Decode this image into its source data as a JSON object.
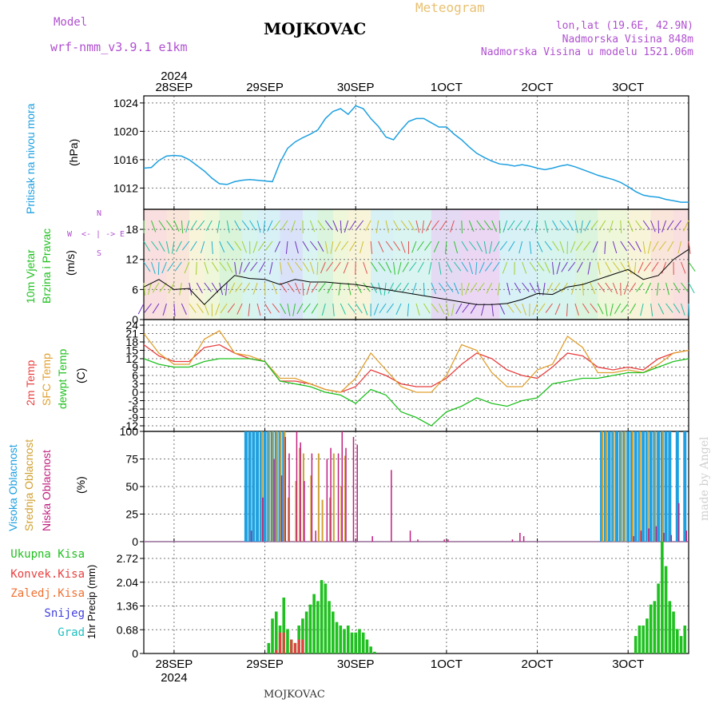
{
  "header": {
    "model_label": "Model",
    "model_name": "wrf-nmm_v3.9.1 e1km",
    "station": "MOJKOVAC",
    "meteogram": "Meteogram",
    "lonlat": "lon,lat (19.6E, 42.9N)",
    "elevation": "Nadmorska Visina 848m",
    "model_elevation": "Nadmorska Visina u modelu 1521.06m",
    "footer_station": "MOJKOVAC",
    "made_by": "made by Angel"
  },
  "time_axis": {
    "year": "2024",
    "labels": [
      "28SEP",
      "29SEP",
      "30SEP",
      "1OCT",
      "2OCT",
      "3OCT"
    ],
    "start_hour": 0,
    "end_hour": 144
  },
  "panels": {
    "pressure": {
      "title": "Pritisak na nivou mora",
      "unit": "(hPa)",
      "color": "#1ea0e0"
    },
    "wind": {
      "title_line1": "10m Vjetar",
      "title_line2": "Brzina i Pravac",
      "unit": "(m/s)",
      "compass_top": "N",
      "compass_left": "W",
      "compass_right": "E",
      "compass_bottom": "S",
      "color": "#20c020",
      "compass_color": "#b050d0"
    },
    "temp": {
      "title_2m": "2m Temp",
      "title_sfc": "SFC Temp",
      "title_dew": "dewpt Temp",
      "unit": "(C)",
      "color_2m": "#e84040",
      "color_sfc": "#e0a030",
      "color_dew": "#20c020"
    },
    "cloud": {
      "title_high": "Visoka Oblacnost",
      "title_mid": "Srednja Oblacnost",
      "title_low": "Niska Oblacnost",
      "unit": "(%)",
      "color_high": "#1ea0e0",
      "color_mid": "#d0a030",
      "color_low": "#c02080"
    },
    "precip": {
      "unit": "1hr Precip (mm)",
      "legend": [
        {
          "label": "Ukupna Kisa",
          "color": "#20c020"
        },
        {
          "label": "Konvek.Kisa",
          "color": "#e84040"
        },
        {
          "label": "Zaledj.Kisa",
          "color": "#f07030"
        },
        {
          "label": "Snijeg",
          "color": "#4040e0"
        },
        {
          "label": "Grad",
          "color": "#20c0c0"
        }
      ]
    }
  },
  "chart_data": [
    {
      "type": "line",
      "panel": "pressure",
      "ylabel": "(hPa)",
      "ylim": [
        1009,
        1025
      ],
      "yticks": [
        "1012",
        "1016",
        "1020",
        "1024"
      ],
      "grid": true,
      "series": [
        {
          "name": "Pritisak na nivou mora",
          "x": [
            0,
            2,
            4,
            6,
            8,
            10,
            12,
            14,
            16,
            18,
            20,
            22,
            24,
            26,
            28,
            30,
            32,
            34,
            36,
            38,
            40,
            42,
            44,
            46,
            48,
            50,
            52,
            54,
            56,
            58,
            60,
            62,
            64,
            66,
            68,
            70,
            72,
            74,
            76,
            78,
            80,
            82,
            84,
            86,
            88,
            90,
            92,
            94,
            96,
            98,
            100,
            102,
            104,
            106,
            108,
            110,
            112,
            114,
            116,
            118,
            120,
            122,
            124,
            126,
            128,
            130,
            132,
            134,
            136,
            138,
            140,
            142,
            144
          ],
          "values": [
            1014.8,
            1014.9,
            1015.9,
            1016.5,
            1016.6,
            1016.5,
            1016.0,
            1015.2,
            1014.4,
            1013.4,
            1012.6,
            1012.5,
            1012.9,
            1013.1,
            1013.2,
            1013.1,
            1013.0,
            1012.9,
            1015.6,
            1017.6,
            1018.5,
            1019.1,
            1019.6,
            1020.2,
            1021.8,
            1022.8,
            1023.2,
            1022.4,
            1023.6,
            1023.2,
            1021.8,
            1020.7,
            1019.2,
            1018.8,
            1020.2,
            1021.4,
            1021.8,
            1021.8,
            1021.2,
            1020.6,
            1020.6,
            1019.6,
            1018.8,
            1017.8,
            1016.9,
            1016.3,
            1015.8,
            1015.4,
            1015.3,
            1015.1,
            1015.3,
            1015.1,
            1014.8,
            1014.6,
            1014.8,
            1015.1,
            1015.3,
            1015.0,
            1014.6,
            1014.2,
            1013.8,
            1013.5,
            1013.2,
            1012.8,
            1012.2,
            1011.5,
            1011.0,
            1010.8,
            1010.7,
            1010.4,
            1010.2,
            1010.0,
            1010.0
          ]
        }
      ]
    },
    {
      "type": "line",
      "panel": "wind",
      "ylabel": "(m/s)",
      "ylim": [
        0,
        22
      ],
      "yticks": [
        "0",
        "6",
        "12",
        "18"
      ],
      "grid": true,
      "series": [
        {
          "name": "wind speed",
          "x": [
            0,
            4,
            8,
            12,
            16,
            20,
            24,
            28,
            32,
            36,
            40,
            44,
            48,
            52,
            56,
            60,
            64,
            68,
            72,
            76,
            80,
            84,
            88,
            92,
            96,
            100,
            104,
            108,
            112,
            116,
            120,
            124,
            128,
            132,
            136,
            140,
            144
          ],
          "values": [
            6.5,
            8.0,
            6.0,
            6.2,
            3.0,
            6.0,
            8.8,
            8.2,
            8.0,
            7.0,
            8.0,
            7.5,
            7.5,
            7.2,
            7.0,
            6.5,
            6.0,
            5.5,
            5.0,
            4.5,
            4.0,
            3.5,
            3.0,
            3.0,
            3.2,
            4.0,
            5.2,
            5.0,
            6.5,
            7.0,
            8.0,
            9.0,
            10.0,
            8.0,
            8.8,
            12.0,
            14.0
          ]
        }
      ]
    },
    {
      "type": "line",
      "panel": "temp",
      "ylabel": "(C)",
      "ylim": [
        -14,
        26
      ],
      "yticks": [
        "-12",
        "-9",
        "-6",
        "-3",
        "0",
        "3",
        "6",
        "9",
        "12",
        "15",
        "18",
        "21",
        "24"
      ],
      "grid": true,
      "series": [
        {
          "name": "2m Temp",
          "x": [
            0,
            4,
            8,
            12,
            16,
            20,
            24,
            28,
            32,
            36,
            40,
            44,
            48,
            52,
            56,
            60,
            64,
            68,
            72,
            76,
            80,
            84,
            88,
            92,
            96,
            100,
            104,
            108,
            112,
            116,
            120,
            124,
            128,
            132,
            136,
            140,
            144
          ],
          "values": [
            17,
            13,
            11,
            11,
            16,
            17,
            14,
            12,
            11,
            4,
            4,
            3,
            1,
            0,
            2,
            8,
            6,
            3,
            2,
            2,
            5,
            10,
            14,
            12,
            8,
            6,
            5,
            9,
            14,
            13,
            9,
            8,
            9,
            8,
            12,
            14,
            15
          ]
        },
        {
          "name": "SFC Temp",
          "x": [
            0,
            4,
            8,
            12,
            16,
            20,
            24,
            28,
            32,
            36,
            40,
            44,
            48,
            52,
            56,
            60,
            64,
            68,
            72,
            76,
            80,
            84,
            88,
            92,
            96,
            100,
            104,
            108,
            112,
            116,
            120,
            124,
            128,
            132,
            136,
            140,
            144
          ],
          "values": [
            21,
            14,
            10,
            10,
            19,
            22,
            14,
            13,
            11,
            5,
            5,
            3,
            1,
            0,
            5,
            14,
            8,
            2,
            0,
            0,
            6,
            17,
            15,
            7,
            2,
            2,
            8,
            10,
            20,
            16,
            7,
            7,
            8,
            7,
            10,
            14,
            15
          ]
        },
        {
          "name": "dewpt Temp",
          "x": [
            0,
            4,
            8,
            12,
            16,
            20,
            24,
            28,
            32,
            36,
            40,
            44,
            48,
            52,
            56,
            60,
            64,
            68,
            72,
            76,
            80,
            84,
            88,
            92,
            96,
            100,
            104,
            108,
            112,
            116,
            120,
            124,
            128,
            132,
            136,
            140,
            144
          ],
          "values": [
            12,
            10,
            9,
            9,
            11,
            12,
            12,
            12,
            11,
            4,
            3,
            2,
            0,
            -1,
            -4,
            1,
            -1,
            -7,
            -9,
            -12,
            -7,
            -5,
            -2,
            -4,
            -5,
            -3,
            -2,
            3,
            4,
            5,
            5,
            6,
            7,
            7,
            9,
            11,
            12
          ]
        }
      ]
    },
    {
      "type": "bar",
      "panel": "cloud",
      "ylabel": "(%)",
      "ylim": [
        0,
        100
      ],
      "yticks": [
        "0",
        "25",
        "50",
        "75",
        "100"
      ],
      "grid": true,
      "series": [
        {
          "name": "Visoka Oblacnost",
          "x": [
            27,
            28,
            29,
            30,
            31,
            32,
            33,
            34,
            35,
            36,
            37,
            121,
            122,
            123,
            124,
            125,
            126,
            127,
            128,
            129,
            130,
            131,
            132,
            133,
            134,
            135,
            136,
            137,
            138,
            139,
            141,
            143
          ],
          "values": [
            100,
            100,
            100,
            100,
            100,
            100,
            100,
            100,
            100,
            100,
            100,
            100,
            100,
            100,
            100,
            100,
            100,
            100,
            100,
            100,
            100,
            100,
            100,
            100,
            100,
            100,
            100,
            100,
            100,
            100,
            100,
            100
          ]
        },
        {
          "name": "Srednja Oblacnost",
          "x": [
            31,
            33,
            34,
            35,
            36,
            37,
            38,
            40,
            41,
            42,
            44,
            46,
            47,
            49,
            50,
            52,
            53,
            54,
            56,
            57,
            121,
            122,
            124,
            126,
            127,
            129,
            131,
            133,
            135,
            137
          ],
          "values": [
            100,
            100,
            100,
            100,
            100,
            100,
            40,
            55,
            85,
            80,
            60,
            80,
            38,
            40,
            80,
            50,
            78,
            0,
            0,
            0,
            100,
            100,
            100,
            100,
            100,
            100,
            100,
            100,
            100,
            100
          ]
        },
        {
          "name": "Niska Oblacnost",
          "x": [
            28,
            31,
            34,
            36,
            37,
            38,
            40,
            41,
            42,
            44,
            45,
            48,
            49,
            51,
            52,
            53,
            55,
            56,
            58,
            60,
            65,
            70,
            72,
            79,
            80,
            97,
            99,
            100,
            129,
            131,
            133,
            135,
            137,
            139,
            141,
            143
          ],
          "values": [
            10,
            40,
            75,
            60,
            95,
            80,
            100,
            90,
            55,
            80,
            10,
            75,
            85,
            80,
            100,
            85,
            95,
            88,
            0,
            5,
            65,
            10,
            2,
            2,
            2,
            2,
            8,
            5,
            5,
            10,
            12,
            14,
            8,
            6,
            35,
            10
          ]
        }
      ]
    },
    {
      "type": "bar",
      "panel": "precip",
      "ylabel": "1hr Precip (mm)",
      "ylim": [
        0,
        3.2
      ],
      "yticks": [
        "0",
        "0.68",
        "1.36",
        "2.04",
        "2.72"
      ],
      "grid": true,
      "series": [
        {
          "name": "Ukupna Kisa",
          "x": [
            33,
            34,
            35,
            36,
            37,
            38,
            39,
            40,
            41,
            42,
            43,
            44,
            45,
            46,
            47,
            48,
            49,
            50,
            51,
            52,
            53,
            54,
            55,
            56,
            57,
            58,
            59,
            60,
            61,
            130,
            131,
            132,
            133,
            134,
            135,
            136,
            137,
            138,
            139,
            140,
            141,
            142,
            143
          ],
          "values": [
            0.3,
            1.0,
            1.2,
            0.8,
            1.6,
            0.7,
            0.4,
            0.3,
            0.8,
            1.0,
            1.2,
            1.4,
            1.7,
            1.5,
            2.1,
            2.0,
            1.5,
            1.2,
            0.9,
            0.8,
            0.7,
            0.8,
            0.6,
            0.6,
            0.7,
            0.6,
            0.4,
            0.2,
            0.05,
            0.5,
            0.8,
            0.8,
            1.0,
            1.4,
            1.5,
            2.0,
            3.2,
            2.5,
            1.5,
            1.2,
            0.7,
            0.5,
            0.8
          ]
        },
        {
          "name": "Konvek.Kisa",
          "x": [
            35,
            36,
            37,
            39,
            40,
            41,
            42
          ],
          "values": [
            0.1,
            0.6,
            0.6,
            0.4,
            0.3,
            0.4,
            0.4
          ]
        }
      ]
    }
  ]
}
